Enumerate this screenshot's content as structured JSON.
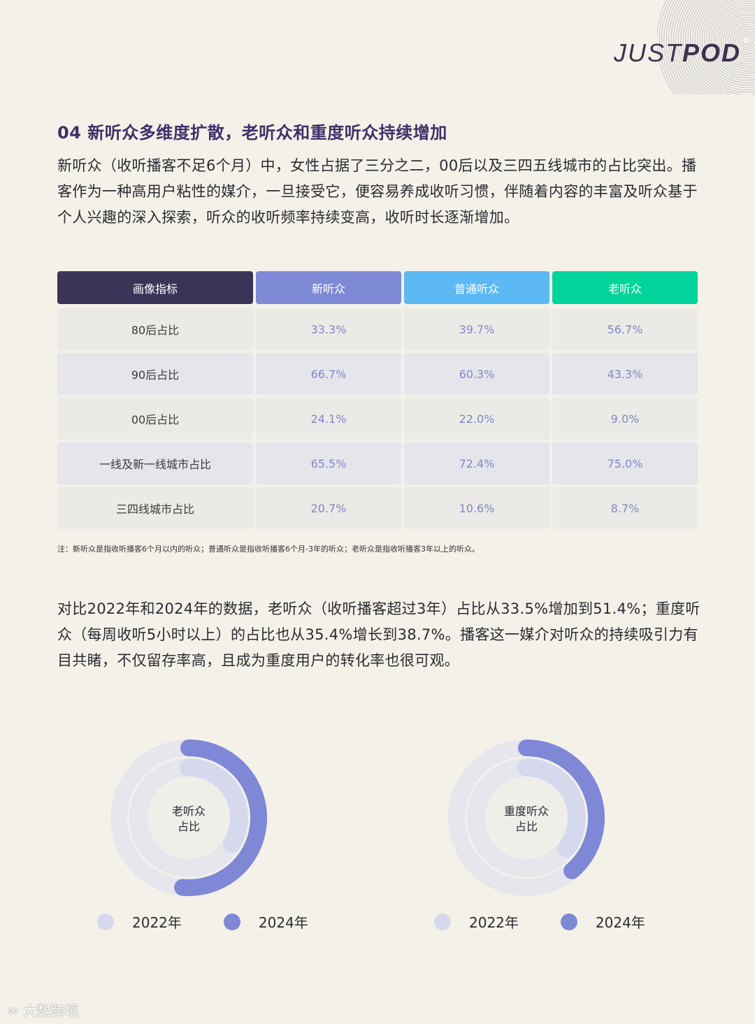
{
  "header": {
    "logo_light": "JUST",
    "logo_bold": "POD"
  },
  "section": {
    "title": "04 新听众多维度扩散，老听众和重度听众持续增加",
    "para1": "新听众（收听播客不足6个月）中，女性占据了三分之二，00后以及三四五线城市的占比突出。播客作为一种高用户粘性的媒介，一旦接受它，便容易养成收听习惯，伴随着内容的丰富及听众基于个人兴趣的深入探索，听众的收听频率持续变高，收听时长逐渐增加。",
    "note": "注：新听众是指收听播客6个月以内的听众；普通听众是指收听播客6个月-3年的听众；老听众是指收听播客3年以上的听众。",
    "para2": "对比2022年和2024年的数据，老听众（收听播客超过3年）占比从33.5%增加到51.4%；重度听众（每周收听5小时以上）的占比也从35.4%增长到38.7%。播客这一媒介对听众的持续吸引力有目共睹，不仅留存率高，且成为重度用户的转化率也很可观。"
  },
  "colors": {
    "header_dark": "#3b3358",
    "new": "#7f8ad6",
    "normal": "#5cb9f3",
    "old": "#00d49b",
    "ring_2024": "#7f88d6",
    "ring_2022": "#d6d9ee",
    "ring_track": "#e6e6ed"
  },
  "chart_data": [
    {
      "type": "table",
      "columns": [
        "画像指标",
        "新听众",
        "普通听众",
        "老听众"
      ],
      "rows": [
        [
          "80后占比",
          "33.3%",
          "39.7%",
          "56.7%"
        ],
        [
          "90后占比",
          "66.7%",
          "60.3%",
          "43.3%"
        ],
        [
          "00后占比",
          "24.1%",
          "22.0%",
          "9.0%"
        ],
        [
          "一线及新一线城市占比",
          "65.5%",
          "72.4%",
          "75.0%"
        ],
        [
          "三四线城市占比",
          "20.7%",
          "10.6%",
          "8.7%"
        ]
      ]
    },
    {
      "type": "pie",
      "center_label": [
        "老听众",
        "占比"
      ],
      "series": [
        {
          "name": "2022年",
          "value": 33.5
        },
        {
          "name": "2024年",
          "value": 51.4
        }
      ]
    },
    {
      "type": "pie",
      "center_label": [
        "重度听众",
        "占比"
      ],
      "series": [
        {
          "name": "2022年",
          "value": 35.4
        },
        {
          "name": "2024年",
          "value": 38.7
        }
      ]
    }
  ],
  "watermark": "大数跨境"
}
